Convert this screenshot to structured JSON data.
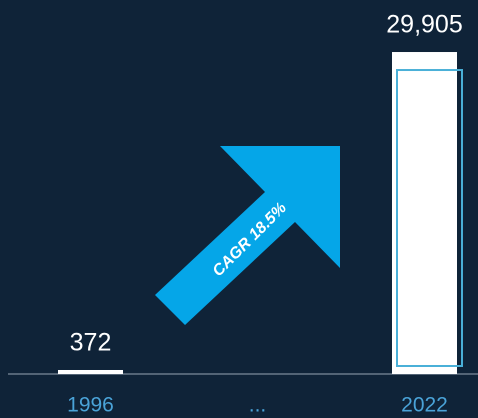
{
  "chart_data": {
    "type": "bar",
    "categories": [
      "1996",
      "...",
      "2022"
    ],
    "values": [
      372,
      null,
      29905
    ],
    "value_labels": [
      "372",
      null,
      "29,905"
    ],
    "color": "#ffffff",
    "ylim": [
      0,
      30000
    ],
    "grid": false,
    "annotation": "CAGR 18.5%"
  }
}
